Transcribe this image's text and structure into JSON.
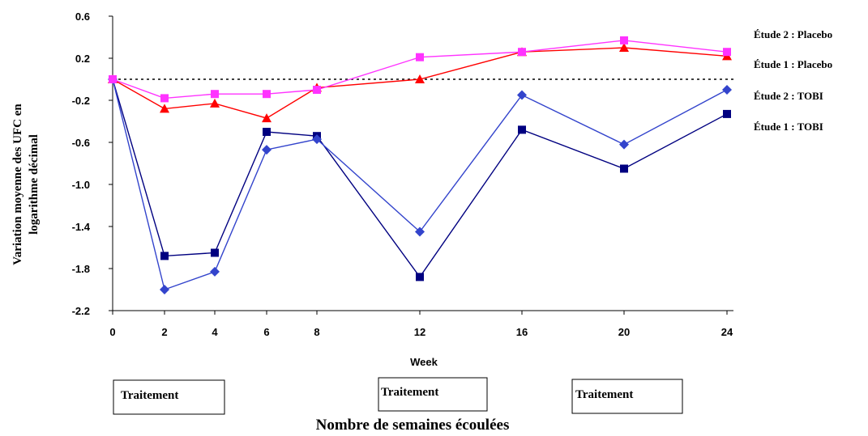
{
  "chart_data": {
    "type": "line",
    "title": "",
    "xlabel": "Week",
    "bottom_title": "Nombre de semaines écoulées",
    "ylabel_line1": "Variation moyenne des UFC en",
    "ylabel_line2": "logarithme décimal",
    "x": [
      0,
      2,
      4,
      6,
      8,
      12,
      16,
      20,
      24
    ],
    "x_tick_labels": [
      "0",
      "2",
      "4",
      "6",
      "8",
      "12",
      "16",
      "20",
      "24"
    ],
    "y_tick_labels": [
      "0.6",
      "0.2",
      "-0.2",
      "-0.6",
      "-1.0",
      "-1.4",
      "-1.8",
      "-2.2"
    ],
    "ylim": [
      -2.2,
      0.6
    ],
    "reference_line_y": 0,
    "series": [
      {
        "name": "Étude 2 : Placebo",
        "color": "#ff33ff",
        "marker": "square",
        "values": [
          0.0,
          -0.18,
          -0.14,
          -0.14,
          -0.1,
          0.21,
          0.26,
          0.37,
          0.26
        ]
      },
      {
        "name": "Étude 1 : Placebo",
        "color": "#ff0000",
        "marker": "triangle",
        "values": [
          0.0,
          -0.28,
          -0.23,
          -0.37,
          -0.08,
          0.0,
          0.26,
          0.3,
          0.22
        ]
      },
      {
        "name": "Étude 2 : TOBI",
        "color": "#3344cc",
        "marker": "diamond",
        "values": [
          0.0,
          -2.0,
          -1.83,
          -0.67,
          -0.57,
          -1.45,
          -0.15,
          -0.62,
          -0.1
        ]
      },
      {
        "name": "Étude 1 : TOBI",
        "color": "#000080",
        "marker": "square",
        "values": [
          0.0,
          -1.68,
          -1.65,
          -0.5,
          -0.54,
          -1.88,
          -0.48,
          -0.85,
          -0.33
        ]
      }
    ],
    "treatment_boxes": [
      "Traitement",
      "Traitement",
      "Traitement"
    ],
    "grid": false,
    "legend_placement": "right"
  }
}
